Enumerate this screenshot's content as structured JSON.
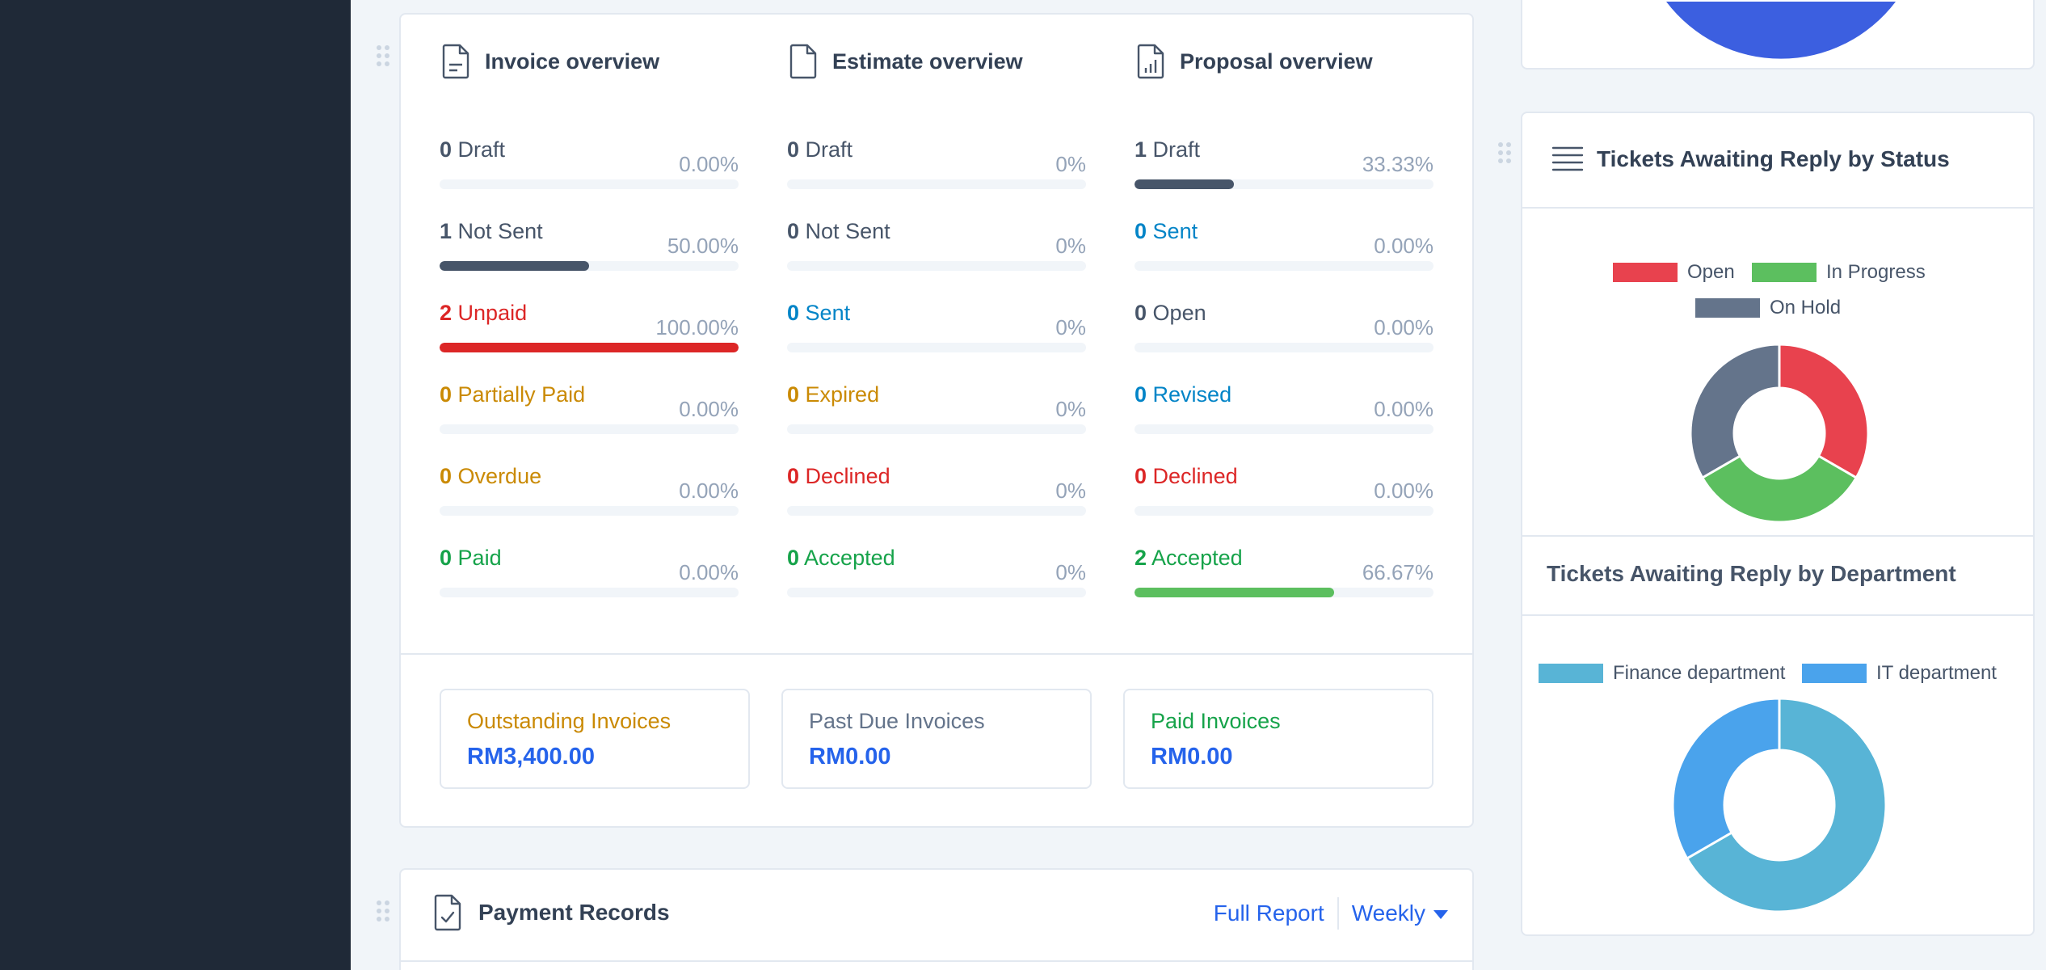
{
  "colors": {
    "sidebar": "#1f2937",
    "muted": "#64748b",
    "danger": "#dc2626",
    "warning": "#ca8a04",
    "success": "#16a34a",
    "info": "#0284c7",
    "link": "#2563eb"
  },
  "invoice_overview": {
    "title": "Invoice overview",
    "icon": "document-text-icon",
    "stats": [
      {
        "count": "0",
        "label": "Draft",
        "percent": "0.00%",
        "progress": 0.0,
        "color": "#475569",
        "bar": "#475569"
      },
      {
        "count": "1",
        "label": "Not Sent",
        "percent": "50.00%",
        "progress": 0.5,
        "color": "#475569",
        "bar": "#475569"
      },
      {
        "count": "2",
        "label": "Unpaid",
        "percent": "100.00%",
        "progress": 1.0,
        "color": "#dc2626",
        "bar": "#dc2626"
      },
      {
        "count": "0",
        "label": "Partially Paid",
        "percent": "0.00%",
        "progress": 0.0,
        "color": "#ca8a04",
        "bar": "#ca8a04"
      },
      {
        "count": "0",
        "label": "Overdue",
        "percent": "0.00%",
        "progress": 0.0,
        "color": "#ca8a04",
        "bar": "#ca8a04"
      },
      {
        "count": "0",
        "label": "Paid",
        "percent": "0.00%",
        "progress": 0.0,
        "color": "#16a34a",
        "bar": "#16a34a"
      }
    ]
  },
  "estimate_overview": {
    "title": "Estimate overview",
    "icon": "document-icon",
    "stats": [
      {
        "count": "0",
        "label": "Draft",
        "percent": "0%",
        "progress": 0.0,
        "color": "#475569",
        "bar": "#475569"
      },
      {
        "count": "0",
        "label": "Not Sent",
        "percent": "0%",
        "progress": 0.0,
        "color": "#475569",
        "bar": "#475569"
      },
      {
        "count": "0",
        "label": "Sent",
        "percent": "0%",
        "progress": 0.0,
        "color": "#0284c7",
        "bar": "#0284c7"
      },
      {
        "count": "0",
        "label": "Expired",
        "percent": "0%",
        "progress": 0.0,
        "color": "#ca8a04",
        "bar": "#ca8a04"
      },
      {
        "count": "0",
        "label": "Declined",
        "percent": "0%",
        "progress": 0.0,
        "color": "#dc2626",
        "bar": "#dc2626"
      },
      {
        "count": "0",
        "label": "Accepted",
        "percent": "0%",
        "progress": 0.0,
        "color": "#16a34a",
        "bar": "#16a34a"
      }
    ]
  },
  "proposal_overview": {
    "title": "Proposal overview",
    "icon": "document-chart-icon",
    "stats": [
      {
        "count": "1",
        "label": "Draft",
        "percent": "33.33%",
        "progress": 0.3333,
        "color": "#475569",
        "bar": "#475569"
      },
      {
        "count": "0",
        "label": "Sent",
        "percent": "0.00%",
        "progress": 0.0,
        "color": "#0284c7",
        "bar": "#0284c7"
      },
      {
        "count": "0",
        "label": "Open",
        "percent": "0.00%",
        "progress": 0.0,
        "color": "#475569",
        "bar": "#475569"
      },
      {
        "count": "0",
        "label": "Revised",
        "percent": "0.00%",
        "progress": 0.0,
        "color": "#0284c7",
        "bar": "#0284c7"
      },
      {
        "count": "0",
        "label": "Declined",
        "percent": "0.00%",
        "progress": 0.0,
        "color": "#dc2626",
        "bar": "#dc2626"
      },
      {
        "count": "2",
        "label": "Accepted",
        "percent": "66.67%",
        "progress": 0.6667,
        "color": "#16a34a",
        "bar": "#5cbf5f"
      }
    ]
  },
  "summary": [
    {
      "label": "Outstanding Invoices",
      "value": "RM3,400.00",
      "color": "#ca8a04"
    },
    {
      "label": "Past Due Invoices",
      "value": "RM0.00",
      "color": "#64748b"
    },
    {
      "label": "Paid Invoices",
      "value": "RM0.00",
      "color": "#16a34a"
    }
  ],
  "payment_records": {
    "title": "Payment Records",
    "icon": "document-check-icon",
    "full_report_label": "Full Report",
    "period_label": "Weekly"
  },
  "tickets_by_status": {
    "title": "Tickets Awaiting Reply by Status",
    "icon": "list-lines-icon",
    "legend": [
      {
        "label": "Open",
        "color": "#e8424e"
      },
      {
        "label": "In Progress",
        "color": "#5cbf5f"
      },
      {
        "label": "On Hold",
        "color": "#64748b"
      }
    ]
  },
  "tickets_by_department": {
    "title": "Tickets Awaiting Reply by Department",
    "legend": [
      {
        "label": "Finance department",
        "color": "#58b4d6"
      },
      {
        "label": "IT department",
        "color": "#4aa3ec"
      }
    ]
  },
  "chart_data": [
    {
      "type": "pie",
      "subtype": "doughnut",
      "labels": [
        "Open",
        "In Progress",
        "On Hold"
      ],
      "values": [
        1,
        1,
        1
      ],
      "colors": [
        "#e8424e",
        "#5cbf5f",
        "#64748b"
      ],
      "legend_position": "top"
    },
    {
      "type": "pie",
      "subtype": "doughnut",
      "labels": [
        "Finance department",
        "IT department"
      ],
      "values": [
        2,
        1
      ],
      "colors": [
        "#58b4d6",
        "#4aa3ec"
      ],
      "legend_position": "top"
    }
  ]
}
